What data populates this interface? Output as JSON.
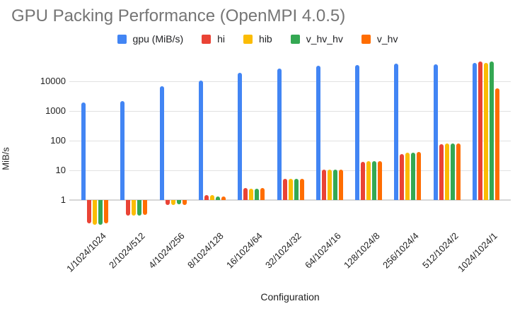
{
  "chart_data": {
    "type": "bar",
    "title": "GPU Packing Performance (OpenMPI 4.0.5)",
    "xlabel": "Configuration",
    "ylabel": "MiB/s",
    "y_scale": "log",
    "yticks": [
      1,
      10,
      100,
      1000,
      10000
    ],
    "ylim": [
      0.13,
      60000
    ],
    "grid": true,
    "legend_position": "top",
    "title_color": "#757575",
    "categories": [
      "1/1024/1024",
      "2/1024/512",
      "4/1024/256",
      "8/1024/128",
      "16/1024/64",
      "32/1024/32",
      "64/1024/16",
      "128/1024/8",
      "256/1024/4",
      "512/1024/2",
      "1024/1024/1"
    ],
    "series": [
      {
        "name": "gpu (MiB/s)",
        "color": "#4285F4",
        "values": [
          1900,
          2200,
          7000,
          10500,
          19000,
          27000,
          33000,
          35000,
          39000,
          37000,
          42000
        ]
      },
      {
        "name": "hi",
        "color": "#EA4335",
        "values": [
          0.16,
          0.3,
          0.7,
          1.45,
          2.5,
          5.2,
          10.5,
          19,
          36,
          76,
          46000
        ]
      },
      {
        "name": "hib",
        "color": "#FBBC04",
        "values": [
          0.15,
          0.3,
          0.7,
          1.45,
          2.4,
          5.2,
          10.5,
          20,
          40,
          82,
          42000
        ]
      },
      {
        "name": "v_hv_hv",
        "color": "#34A853",
        "values": [
          0.15,
          0.3,
          0.72,
          1.3,
          2.4,
          5.2,
          10.5,
          20,
          40,
          80,
          46000
        ]
      },
      {
        "name": "v_hv",
        "color": "#FF6D01",
        "values": [
          0.16,
          0.32,
          0.7,
          1.3,
          2.5,
          5.2,
          10.5,
          20,
          42,
          80,
          5800
        ]
      }
    ]
  }
}
